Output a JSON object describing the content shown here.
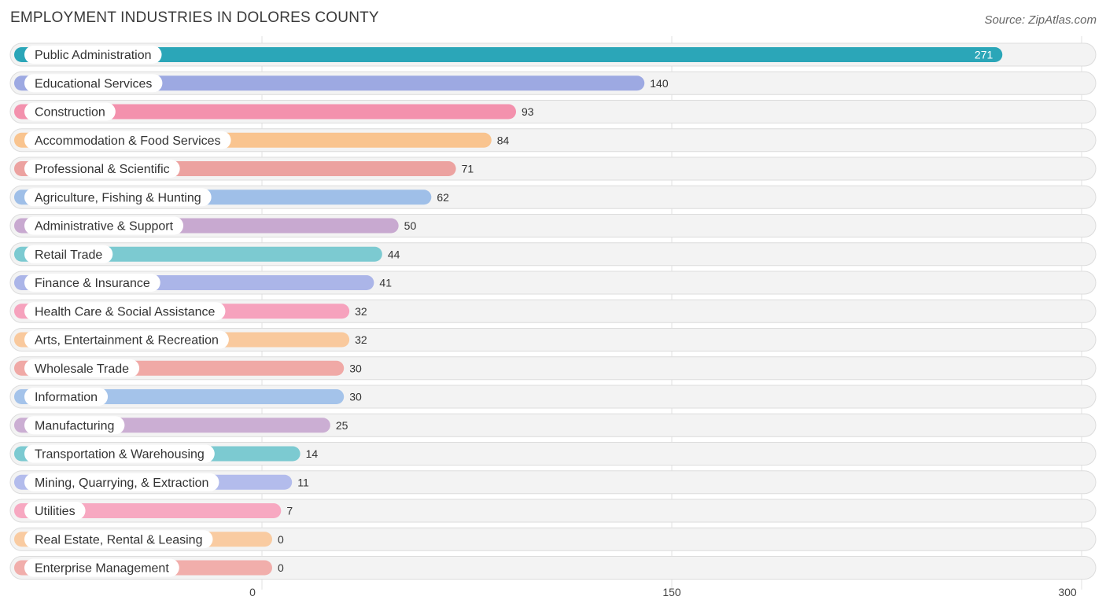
{
  "header": {
    "title": "EMPLOYMENT INDUSTRIES IN DOLORES COUNTY",
    "source": "Source: ZipAtlas.com"
  },
  "chart_data": {
    "type": "bar",
    "orientation": "horizontal",
    "title": "EMPLOYMENT INDUSTRIES IN DOLORES COUNTY",
    "categories": [
      "Public Administration",
      "Educational Services",
      "Construction",
      "Accommodation & Food Services",
      "Professional & Scientific",
      "Agriculture, Fishing & Hunting",
      "Administrative & Support",
      "Retail Trade",
      "Finance & Insurance",
      "Health Care & Social Assistance",
      "Arts, Entertainment & Recreation",
      "Wholesale Trade",
      "Information",
      "Manufacturing",
      "Transportation & Warehousing",
      "Mining, Quarrying, & Extraction",
      "Utilities",
      "Real Estate, Rental & Leasing",
      "Enterprise Management"
    ],
    "values": [
      271,
      140,
      93,
      84,
      71,
      62,
      50,
      44,
      41,
      32,
      32,
      30,
      30,
      25,
      14,
      11,
      7,
      0,
      0
    ],
    "colors": [
      "#2ba6b8",
      "#9da9e2",
      "#f391ad",
      "#f9c48f",
      "#eca2a0",
      "#9fbfe8",
      "#c8a9d0",
      "#7ccad1",
      "#abb5e8",
      "#f6a2bd",
      "#f9c99d",
      "#f0a9a6",
      "#a4c3ea",
      "#cbaed3",
      "#7ccad1",
      "#b3bcec",
      "#f7a8c1",
      "#f9cba1",
      "#f1aeab"
    ],
    "xlim": [
      0,
      300
    ],
    "xticks": [
      0,
      150,
      300
    ],
    "grid": true
  }
}
